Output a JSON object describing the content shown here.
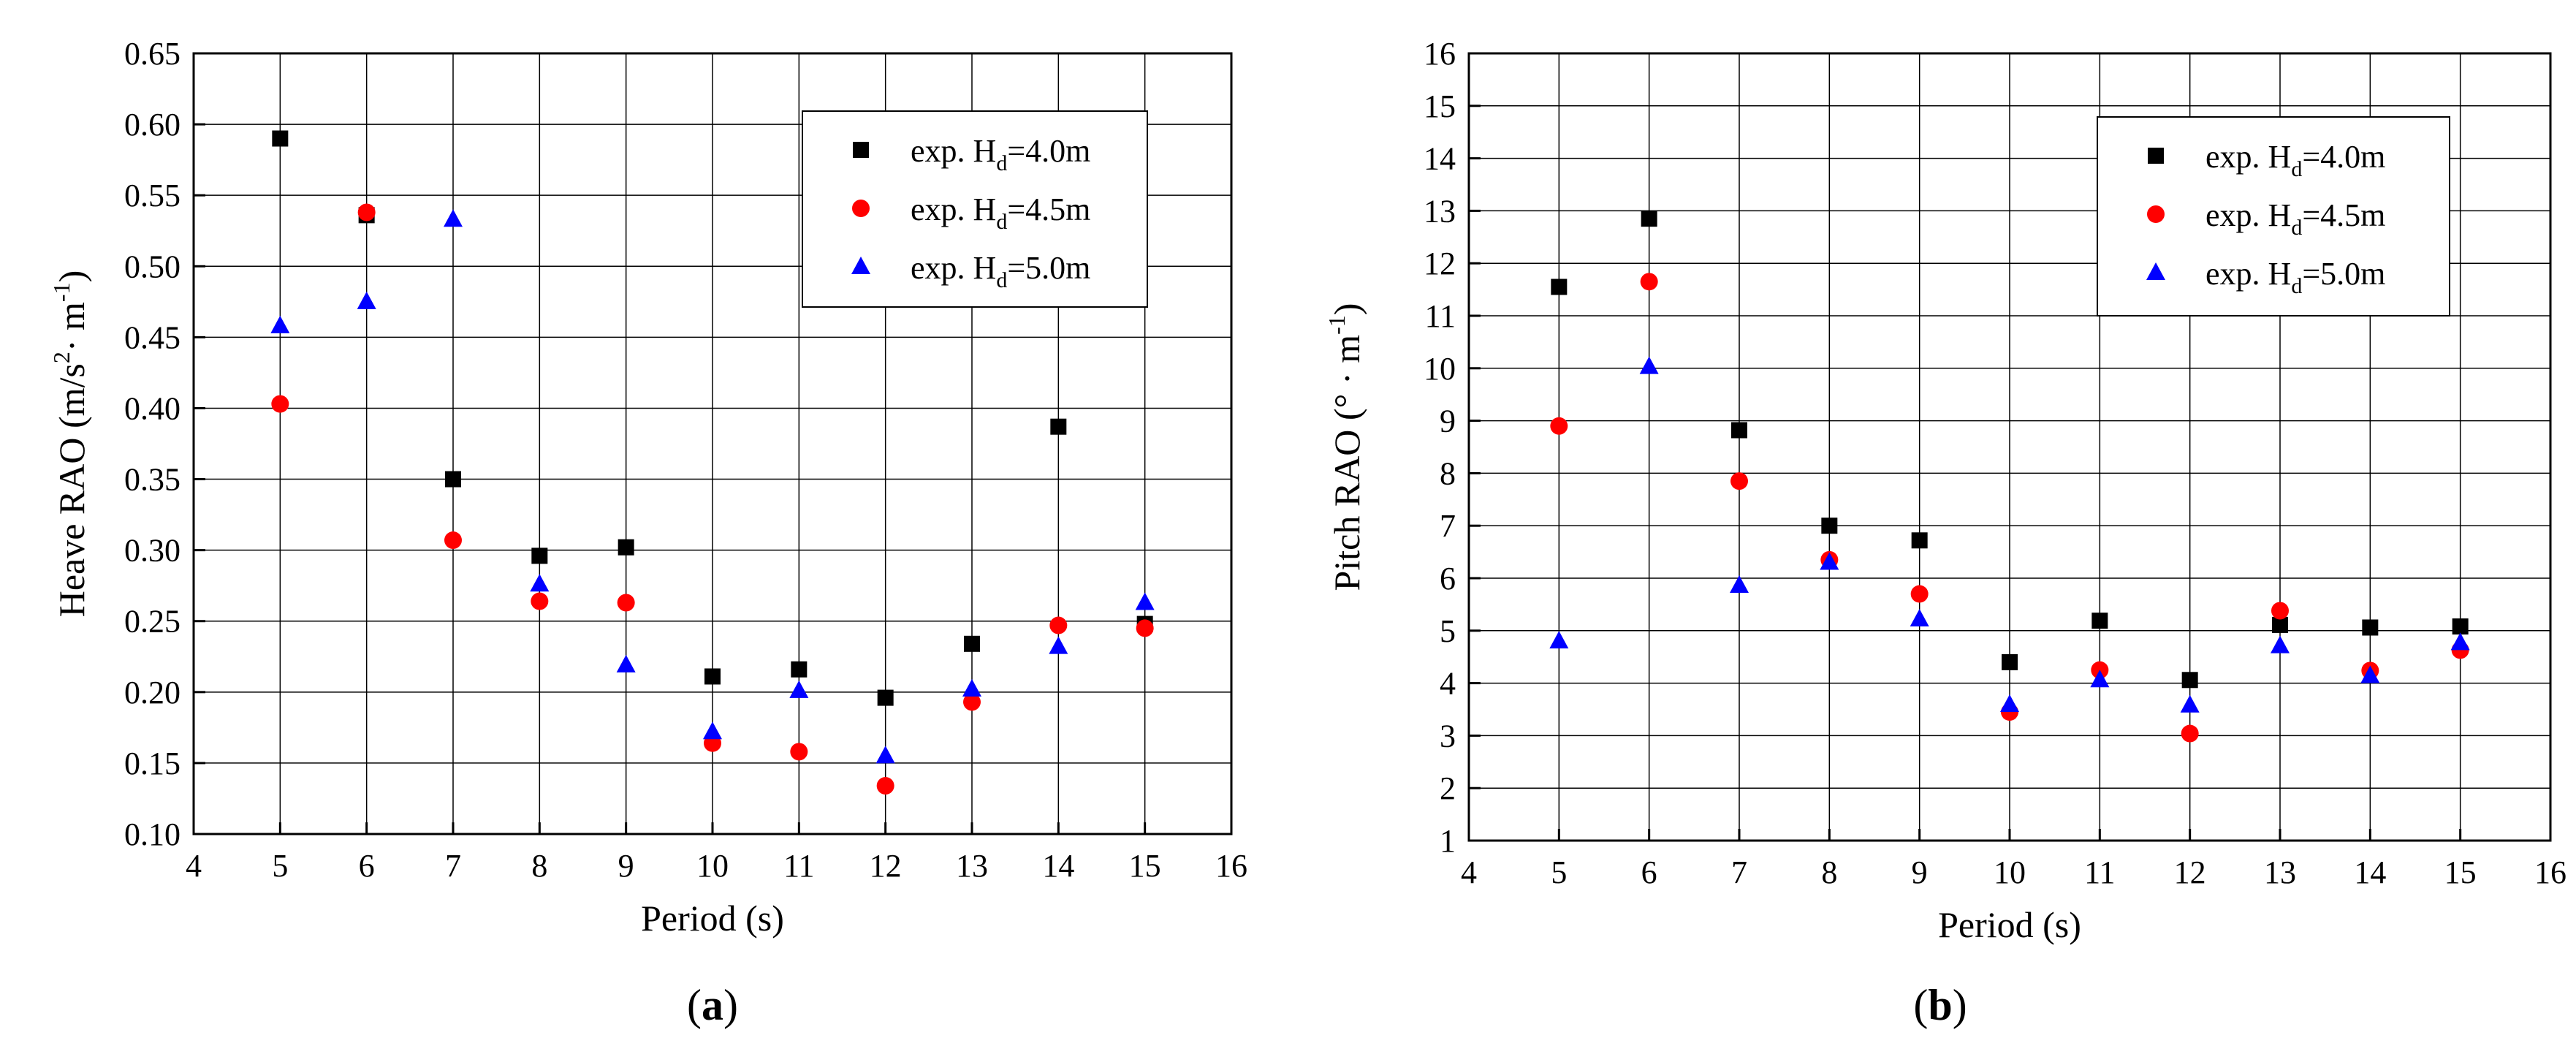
{
  "chart_data": [
    {
      "type": "scatter",
      "panel_label_open": "(",
      "panel_label_letter": "a",
      "panel_label_close": ")",
      "xlabel": "Period (s)",
      "ylabel_main": "Heave RAO (m/s",
      "ylabel_sup": "2",
      "ylabel_mid": "· m",
      "ylabel_sup2": "-1",
      "ylabel_end": ")",
      "xlim": [
        4,
        16
      ],
      "ylim": [
        0.1,
        0.65
      ],
      "x_ticks": [
        4,
        5,
        6,
        7,
        8,
        9,
        10,
        11,
        12,
        13,
        14,
        15,
        16
      ],
      "y_ticks": [
        0.1,
        0.15,
        0.2,
        0.25,
        0.3,
        0.35,
        0.4,
        0.45,
        0.5,
        0.55,
        0.6,
        0.65
      ],
      "y_tick_decimals": 2,
      "grid": true,
      "legend_position": "top-right",
      "series": [
        {
          "name_prefix": "exp. H",
          "name_sub": "d",
          "name_suffix": "=4.0m",
          "marker": "square",
          "color": "#000000",
          "x": [
            5,
            6,
            7,
            8,
            9,
            10,
            11,
            12,
            13,
            14,
            15
          ],
          "y": [
            0.59,
            0.536,
            0.35,
            0.296,
            0.302,
            0.211,
            0.216,
            0.196,
            0.234,
            0.387,
            0.248
          ]
        },
        {
          "name_prefix": "exp. H",
          "name_sub": "d",
          "name_suffix": "=4.5m",
          "marker": "circle",
          "color": "#ff0000",
          "x": [
            5,
            6,
            7,
            8,
            9,
            10,
            11,
            12,
            13,
            14,
            15
          ],
          "y": [
            0.403,
            0.538,
            0.307,
            0.264,
            0.263,
            0.164,
            0.158,
            0.134,
            0.193,
            0.247,
            0.245
          ]
        },
        {
          "name_prefix": "exp. H",
          "name_sub": "d",
          "name_suffix": "=5.0m",
          "marker": "triangle",
          "color": "#0000ff",
          "x": [
            5,
            6,
            7,
            8,
            9,
            10,
            11,
            12,
            13,
            14,
            15
          ],
          "y": [
            0.458,
            0.475,
            0.533,
            0.276,
            0.219,
            0.172,
            0.201,
            0.155,
            0.202,
            0.232,
            0.263
          ]
        }
      ]
    },
    {
      "type": "scatter",
      "panel_label_open": "(",
      "panel_label_letter": "b",
      "panel_label_close": ")",
      "xlabel": "Period (s)",
      "ylabel_main": "Pitch RAO (° · m",
      "ylabel_sup": "-1",
      "ylabel_mid": "",
      "ylabel_sup2": "",
      "ylabel_end": ")",
      "xlim": [
        4,
        16
      ],
      "ylim": [
        1,
        16
      ],
      "x_ticks": [
        4,
        5,
        6,
        7,
        8,
        9,
        10,
        11,
        12,
        13,
        14,
        15,
        16
      ],
      "y_ticks": [
        1,
        2,
        3,
        4,
        5,
        6,
        7,
        8,
        9,
        10,
        11,
        12,
        13,
        14,
        15,
        16
      ],
      "y_tick_decimals": 0,
      "grid": true,
      "legend_position": "top-right",
      "series": [
        {
          "name_prefix": "exp. H",
          "name_sub": "d",
          "name_suffix": "=4.0m",
          "marker": "square",
          "color": "#000000",
          "x": [
            5,
            6,
            7,
            8,
            9,
            10,
            11,
            12,
            13,
            14,
            15
          ],
          "y": [
            11.55,
            12.85,
            8.82,
            7.0,
            6.72,
            4.4,
            5.19,
            4.06,
            5.11,
            5.06,
            5.08
          ]
        },
        {
          "name_prefix": "exp. H",
          "name_sub": "d",
          "name_suffix": "=4.5m",
          "marker": "circle",
          "color": "#ff0000",
          "x": [
            5,
            6,
            7,
            8,
            9,
            10,
            11,
            12,
            13,
            14,
            15
          ],
          "y": [
            8.9,
            11.65,
            7.85,
            6.35,
            5.7,
            3.45,
            4.25,
            3.04,
            5.38,
            4.24,
            4.63
          ]
        },
        {
          "name_prefix": "exp. H",
          "name_sub": "d",
          "name_suffix": "=5.0m",
          "marker": "triangle",
          "color": "#0000ff",
          "x": [
            5,
            6,
            7,
            8,
            9,
            10,
            11,
            12,
            13,
            14,
            15
          ],
          "y": [
            4.8,
            10.03,
            5.86,
            6.3,
            5.22,
            3.59,
            4.06,
            3.58,
            4.71,
            4.14,
            4.77
          ]
        }
      ]
    }
  ]
}
